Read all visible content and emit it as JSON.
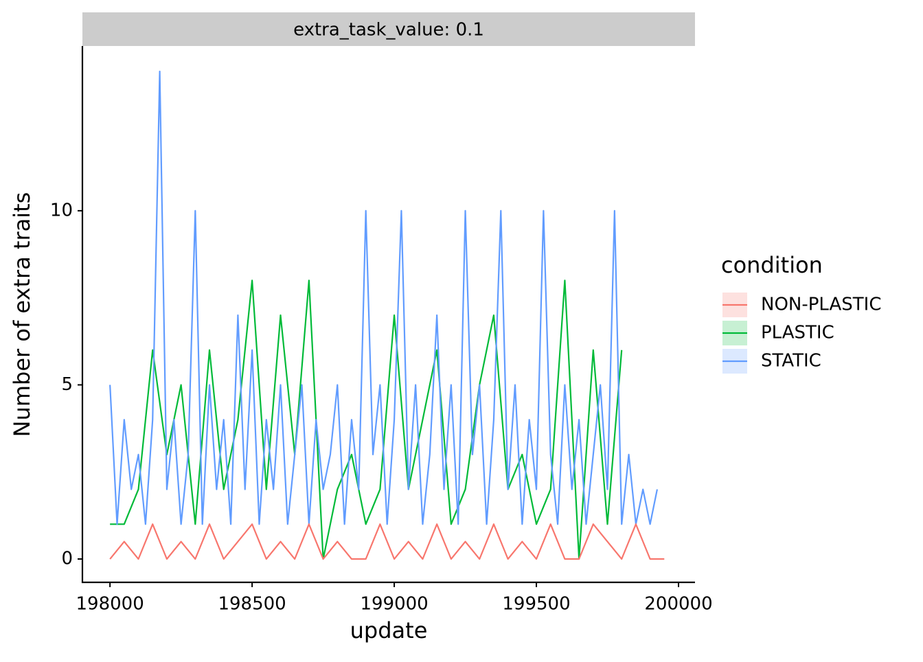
{
  "chart_data": {
    "type": "line",
    "title": "extra_task_value: 0.1",
    "x_label": "update",
    "y_label": "Number of extra traits",
    "legend_title": "condition",
    "legend_position": "right",
    "xlim": [
      197903,
      200058
    ],
    "ylim": [
      -0.67,
      14.73
    ],
    "xticks": [
      198000,
      198500,
      199000,
      199500,
      200000
    ],
    "yticks": [
      0,
      5,
      10
    ],
    "grid": false,
    "series": [
      {
        "name": "NON-PLASTIC",
        "color": "#f8766d",
        "x": [
          198000,
          198050,
          198100,
          198150,
          198200,
          198250,
          198300,
          198350,
          198400,
          198450,
          198500,
          198550,
          198600,
          198650,
          198700,
          198750,
          198800,
          198850,
          198900,
          198950,
          199000,
          199050,
          199100,
          199150,
          199200,
          199250,
          199300,
          199350,
          199400,
          199450,
          199500,
          199550,
          199600,
          199650,
          199700,
          199750,
          199800,
          199850,
          199900,
          199950
        ],
        "values": [
          0,
          0.5,
          0,
          1,
          0,
          0.5,
          0,
          1,
          0,
          0.5,
          1,
          0,
          0.5,
          0,
          1,
          0,
          0.5,
          0,
          0,
          1,
          0,
          0.5,
          0,
          1,
          0,
          0.5,
          0,
          1,
          0,
          0.5,
          0,
          1,
          0,
          0,
          1,
          0.5,
          0,
          1,
          0,
          0
        ]
      },
      {
        "name": "PLASTIC",
        "color": "#00ba38",
        "x": [
          198000,
          198050,
          198100,
          198150,
          198200,
          198250,
          198300,
          198350,
          198400,
          198450,
          198500,
          198550,
          198600,
          198650,
          198700,
          198750,
          198800,
          198850,
          198900,
          198950,
          199000,
          199050,
          199100,
          199150,
          199200,
          199250,
          199300,
          199350,
          199400,
          199450,
          199500,
          199550,
          199600,
          199650,
          199700,
          199750,
          199800
        ],
        "values": [
          1,
          1,
          2,
          6,
          3,
          5,
          1,
          6,
          2,
          4,
          8,
          2,
          7,
          3,
          8,
          0,
          2,
          3,
          1,
          2,
          7,
          2,
          4,
          6,
          1,
          2,
          5,
          7,
          2,
          3,
          1,
          2,
          8,
          0,
          6,
          1,
          6
        ]
      },
      {
        "name": "STATIC",
        "color": "#619cff",
        "x": [
          198000,
          198025,
          198050,
          198075,
          198100,
          198125,
          198150,
          198175,
          198200,
          198225,
          198250,
          198275,
          198300,
          198325,
          198350,
          198375,
          198400,
          198425,
          198450,
          198475,
          198500,
          198525,
          198550,
          198575,
          198600,
          198625,
          198650,
          198675,
          198700,
          198725,
          198750,
          198775,
          198800,
          198825,
          198850,
          198875,
          198900,
          198925,
          198950,
          198975,
          199000,
          199025,
          199050,
          199075,
          199100,
          199125,
          199150,
          199175,
          199200,
          199225,
          199250,
          199275,
          199300,
          199325,
          199350,
          199375,
          199400,
          199425,
          199450,
          199475,
          199500,
          199525,
          199550,
          199575,
          199600,
          199625,
          199650,
          199675,
          199700,
          199725,
          199750,
          199775,
          199800,
          199825,
          199850,
          199875,
          199900,
          199925
        ],
        "values": [
          5,
          1,
          4,
          2,
          3,
          1,
          4,
          14,
          2,
          4,
          1,
          3,
          10,
          1,
          5,
          2,
          4,
          1,
          7,
          2,
          6,
          1,
          4,
          2,
          5,
          1,
          3,
          5,
          1,
          4,
          2,
          3,
          5,
          1,
          4,
          2,
          10,
          3,
          5,
          1,
          4,
          10,
          2,
          5,
          1,
          3,
          7,
          2,
          5,
          1,
          10,
          3,
          5,
          1,
          4,
          10,
          2,
          5,
          1,
          4,
          2,
          10,
          3,
          1,
          5,
          2,
          4,
          1,
          3,
          5,
          2,
          10,
          1,
          3,
          1,
          2,
          1,
          2
        ]
      }
    ]
  }
}
